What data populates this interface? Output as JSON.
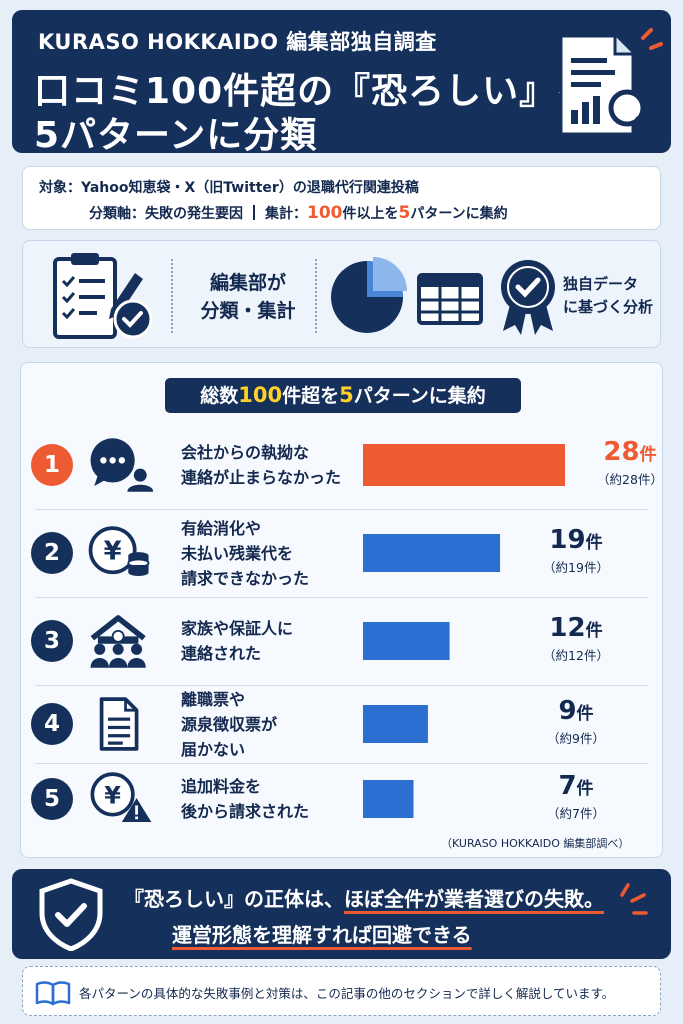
{
  "header": {
    "subtitle": "KURASO HOKKAIDO 編集部独自調査",
    "title_line1": "口コミ100件超の『恐ろしい』を",
    "title_line2": "5パターンに分類",
    "icon": "report-magnifier-icon"
  },
  "info": {
    "target_label": "対象：",
    "target_value": "Yahoo知恵袋・X（旧Twitter）の退職代行関連投稿",
    "axis_label": "分類軸：",
    "axis_value": "失敗の発生要因",
    "total_label": "集計：",
    "total_num": "100",
    "total_mid": "件以上を",
    "total_num2": "5",
    "total_end": "パターンに集約"
  },
  "method": {
    "text1_line1": "編集部が",
    "text1_line2": "分類・集計",
    "text2_line1": "独自データ",
    "text2_line2": "に基づく分析",
    "icons": [
      "clipboard-check-icon",
      "pie-chart-icon",
      "table-icon",
      "award-badge-icon"
    ]
  },
  "panel": {
    "title_pre": "総数",
    "title_num": "100",
    "title_mid": "件超を",
    "title_num2": "5",
    "title_end": "パターンに集約",
    "source": "（KURASO HOKKAIDO 編集部調べ）"
  },
  "chart_data": {
    "type": "bar",
    "orientation": "horizontal",
    "title": "総数100件超を5パターンに集約",
    "categories": [
      "会社からの執拗な連絡が止まらなかった",
      "有給消化や未払い残業代を請求できなかった",
      "家族や保証人に連絡された",
      "離職票や源泉徴収票が届かない",
      "追加料金を後から請求された"
    ],
    "category_lines": [
      [
        "会社からの執拗な",
        "連絡が止まらなかった"
      ],
      [
        "有給消化や",
        "未払い残業代を",
        "請求できなかった"
      ],
      [
        "家族や保証人に",
        "連絡された"
      ],
      [
        "離職票や",
        "源泉徴収票が",
        "届かない"
      ],
      [
        "追加料金を",
        "後から請求された"
      ]
    ],
    "rank_labels": [
      "1",
      "2",
      "3",
      "4",
      "5"
    ],
    "values": [
      28,
      19,
      12,
      9,
      7
    ],
    "value_labels": [
      "28",
      "19",
      "12",
      "9",
      "7"
    ],
    "value_unit": "件",
    "sub_labels": [
      "（約28件）",
      "（約19件）",
      "（約12件）",
      "（約9件）",
      "（約7件）"
    ],
    "icons": [
      "chat-bubble-icon",
      "yen-coins-icon",
      "house-family-icon",
      "document-icon",
      "yen-warning-icon"
    ],
    "colors": {
      "highlight": "#ee5a32",
      "default": "#2a6fd1"
    },
    "xlim": [
      0,
      28
    ]
  },
  "conclusion": {
    "line1_pre": "『恐ろしい』の正体は、",
    "line1_hl": "ほぼ全件が業者選びの失敗。",
    "line2": "運営形態を理解すれば回避できる",
    "icon": "shield-check-icon"
  },
  "note": {
    "text": "各パターンの具体的な失敗事例と対策は、この記事の他のセクションで詳しく解説しています。",
    "icon": "open-book-icon"
  },
  "colors": {
    "navy": "#16305c",
    "accent": "#ee5a32",
    "bar_blue": "#2a6fd1",
    "highlight_yellow": "#ffcf2a"
  }
}
